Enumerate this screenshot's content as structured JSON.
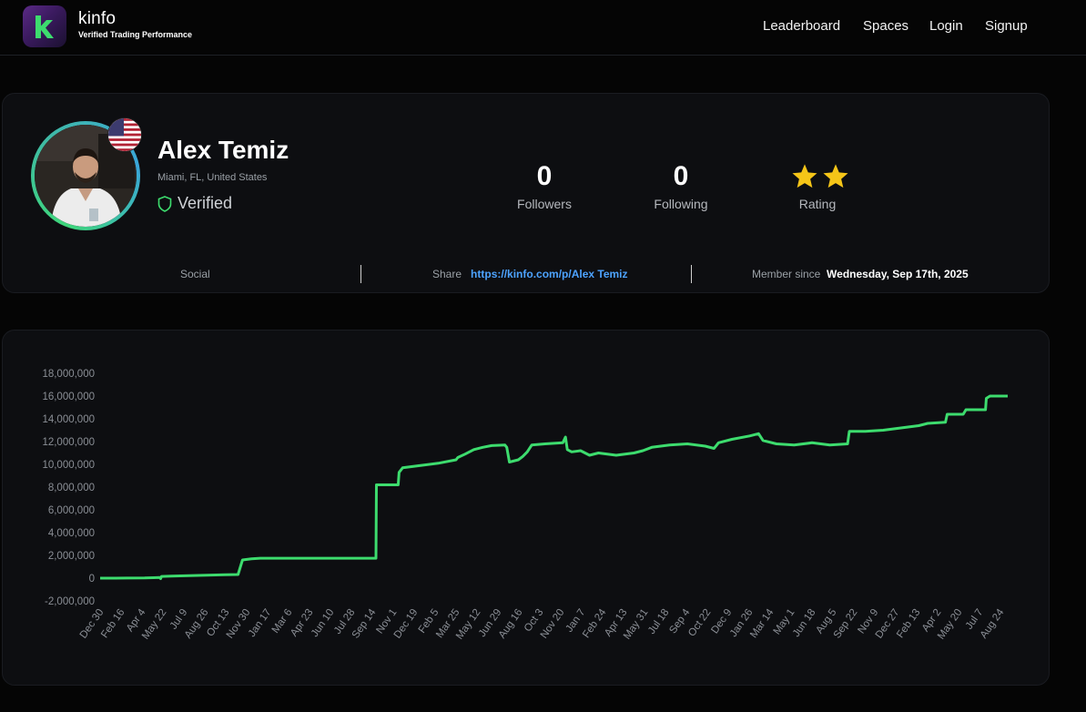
{
  "header": {
    "brand_name": "kinfo",
    "brand_tagline": "Verified Trading Performance",
    "nav": [
      "Leaderboard",
      "Spaces",
      "Login",
      "Signup"
    ]
  },
  "profile": {
    "name": "Alex Temiz",
    "location": "Miami, FL, United States",
    "verified_label": "Verified",
    "followers_count": "0",
    "followers_label": "Followers",
    "following_count": "0",
    "following_label": "Following",
    "rating_label": "Rating",
    "rating_stars": 2,
    "social_label": "Social",
    "share_label": "Share",
    "share_url": "https://kinfo.com/p/Alex Temiz",
    "member_since_label": "Member since",
    "member_since_value": "Wednesday, Sep 17th, 2025"
  },
  "colors": {
    "line": "#3ddc6e",
    "accent_link": "#4da3ff",
    "star": "#f5c518"
  },
  "chart_data": {
    "type": "line",
    "ylim": [
      -2000000,
      18000000
    ],
    "y_ticks": [
      "18,000,000",
      "16,000,000",
      "14,000,000",
      "12,000,000",
      "10,000,000",
      "8,000,000",
      "6,000,000",
      "4,000,000",
      "2,000,000",
      "0",
      "-2,000,000"
    ],
    "y_tick_values": [
      18000000,
      16000000,
      14000000,
      12000000,
      10000000,
      8000000,
      6000000,
      4000000,
      2000000,
      0,
      -2000000
    ],
    "x_ticks": [
      "Dec 30",
      "Feb 16",
      "Apr 4",
      "May 22",
      "Jul 9",
      "Aug 26",
      "Oct 13",
      "Nov 30",
      "Jan 17",
      "Mar 6",
      "Apr 23",
      "Jun 10",
      "Jul 28",
      "Sep 14",
      "Nov 1",
      "Dec 19",
      "Feb 5",
      "Mar 25",
      "May 12",
      "Jun 29",
      "Aug 16",
      "Oct 3",
      "Nov 20",
      "Jan 7",
      "Feb 24",
      "Apr 13",
      "May 31",
      "Jul 18",
      "Sep 4",
      "Oct 22",
      "Dec 9",
      "Jan 26",
      "Mar 14",
      "May 1",
      "Jun 18",
      "Aug 5",
      "Sep 22",
      "Nov 9",
      "Dec 27",
      "Feb 13",
      "Apr 2",
      "May 20",
      "Jul 7",
      "Aug 24"
    ],
    "series": [
      {
        "points": [
          [
            0,
            0
          ],
          [
            3,
            10000
          ],
          [
            5,
            20000
          ],
          [
            6,
            40000
          ],
          [
            6.7,
            60000
          ],
          [
            6.8,
            -40000
          ],
          [
            6.9,
            150000
          ],
          [
            8,
            180000
          ],
          [
            10,
            220000
          ],
          [
            12,
            260000
          ],
          [
            14,
            300000
          ],
          [
            15.5,
            320000
          ],
          [
            16.0,
            1600000
          ],
          [
            17,
            1700000
          ],
          [
            18,
            1750000
          ],
          [
            20,
            1750000
          ],
          [
            25,
            1750000
          ],
          [
            30,
            1750000
          ],
          [
            31.0,
            1750000
          ],
          [
            31.05,
            8200000
          ],
          [
            33.5,
            8200000
          ],
          [
            33.6,
            9300000
          ],
          [
            34,
            9700000
          ],
          [
            36,
            9900000
          ],
          [
            38,
            10100000
          ],
          [
            40,
            10400000
          ],
          [
            40.2,
            10600000
          ],
          [
            41,
            10900000
          ],
          [
            42,
            11300000
          ],
          [
            43,
            11500000
          ],
          [
            44,
            11650000
          ],
          [
            45.5,
            11700000
          ],
          [
            45.7,
            11500000
          ],
          [
            46,
            10200000
          ],
          [
            47,
            10400000
          ],
          [
            47.5,
            10700000
          ],
          [
            48,
            11100000
          ],
          [
            48.5,
            11700000
          ],
          [
            50,
            11800000
          ],
          [
            52,
            11900000
          ],
          [
            52.3,
            12400000
          ],
          [
            52.5,
            11300000
          ],
          [
            53,
            11100000
          ],
          [
            54,
            11200000
          ],
          [
            55,
            10800000
          ],
          [
            56,
            11000000
          ],
          [
            58,
            10800000
          ],
          [
            60,
            11000000
          ],
          [
            61,
            11200000
          ],
          [
            62,
            11500000
          ],
          [
            64,
            11700000
          ],
          [
            66,
            11800000
          ],
          [
            68,
            11600000
          ],
          [
            69,
            11400000
          ],
          [
            69.5,
            11900000
          ],
          [
            71,
            12200000
          ],
          [
            73,
            12500000
          ],
          [
            74,
            12700000
          ],
          [
            74.5,
            12100000
          ],
          [
            76,
            11800000
          ],
          [
            78,
            11700000
          ],
          [
            80,
            11900000
          ],
          [
            82,
            11700000
          ],
          [
            84,
            11800000
          ],
          [
            84.2,
            12900000
          ],
          [
            86,
            12900000
          ],
          [
            88,
            13000000
          ],
          [
            90,
            13200000
          ],
          [
            92,
            13400000
          ],
          [
            93,
            13600000
          ],
          [
            95,
            13700000
          ],
          [
            95.2,
            14400000
          ],
          [
            97,
            14400000
          ],
          [
            97.3,
            14800000
          ],
          [
            99.5,
            14800000
          ],
          [
            99.6,
            15800000
          ],
          [
            100,
            16000000
          ],
          [
            102,
            16000000
          ]
        ]
      }
    ]
  }
}
